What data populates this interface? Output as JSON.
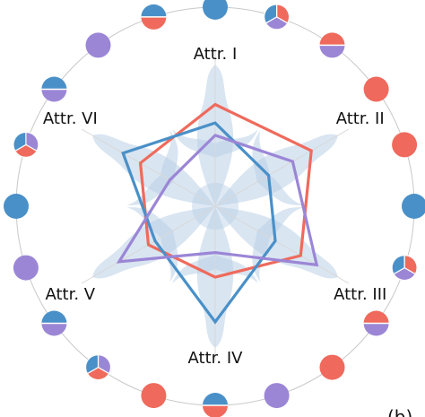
{
  "colors": {
    "blue": "#4a90c8",
    "red": "#ef6a5c",
    "purple": "#9b86d6",
    "ring": "#c8c8c8",
    "spoke": "#d8d8d8",
    "snowflake": "#b9cfe6"
  },
  "panel_tag": "(b)",
  "chart_data": {
    "type": "radar",
    "axes": [
      "Attr. I",
      "Attr. II",
      "Attr. III",
      "Attr. IV",
      "Attr. V",
      "Attr. VI"
    ],
    "range": [
      0,
      1
    ],
    "grid": false,
    "series": [
      {
        "color": "red",
        "values": [
          0.66,
          0.72,
          0.64,
          0.46,
          0.5,
          0.56
        ]
      },
      {
        "color": "blue",
        "values": [
          0.54,
          0.4,
          0.45,
          0.75,
          0.45,
          0.69
        ]
      },
      {
        "color": "purple",
        "values": [
          0.46,
          0.58,
          0.76,
          0.3,
          0.72,
          0.34
        ]
      }
    ],
    "ring_markers": [
      {
        "angle": 180,
        "colors": [
          "blue"
        ]
      },
      {
        "angle": 162,
        "colors": [
          "purple",
          "red",
          "blue"
        ]
      },
      {
        "angle": 144,
        "colors": [
          "blue",
          "purple"
        ]
      },
      {
        "angle": 126,
        "colors": [
          "purple"
        ]
      },
      {
        "angle": 108,
        "colors": [
          "blue",
          "red"
        ]
      },
      {
        "angle": 90,
        "colors": [
          "blue"
        ]
      },
      {
        "angle": 72,
        "colors": [
          "red",
          "purple",
          "blue"
        ]
      },
      {
        "angle": 54,
        "colors": [
          "red",
          "purple"
        ]
      },
      {
        "angle": 36,
        "colors": [
          "red"
        ]
      },
      {
        "angle": 18,
        "colors": [
          "red"
        ]
      },
      {
        "angle": 0,
        "colors": [
          "blue"
        ]
      },
      {
        "angle": -18,
        "colors": [
          "red",
          "purple",
          "blue"
        ]
      },
      {
        "angle": -36,
        "colors": [
          "red",
          "purple"
        ]
      },
      {
        "angle": -54,
        "colors": [
          "red"
        ]
      },
      {
        "angle": -72,
        "colors": [
          "purple"
        ]
      },
      {
        "angle": -90,
        "colors": [
          "blue",
          "red"
        ]
      },
      {
        "angle": -108,
        "colors": [
          "red"
        ]
      },
      {
        "angle": -126,
        "colors": [
          "purple",
          "red",
          "blue"
        ]
      },
      {
        "angle": -144,
        "colors": [
          "blue",
          "purple"
        ]
      },
      {
        "angle": -162,
        "colors": [
          "purple"
        ]
      }
    ]
  }
}
